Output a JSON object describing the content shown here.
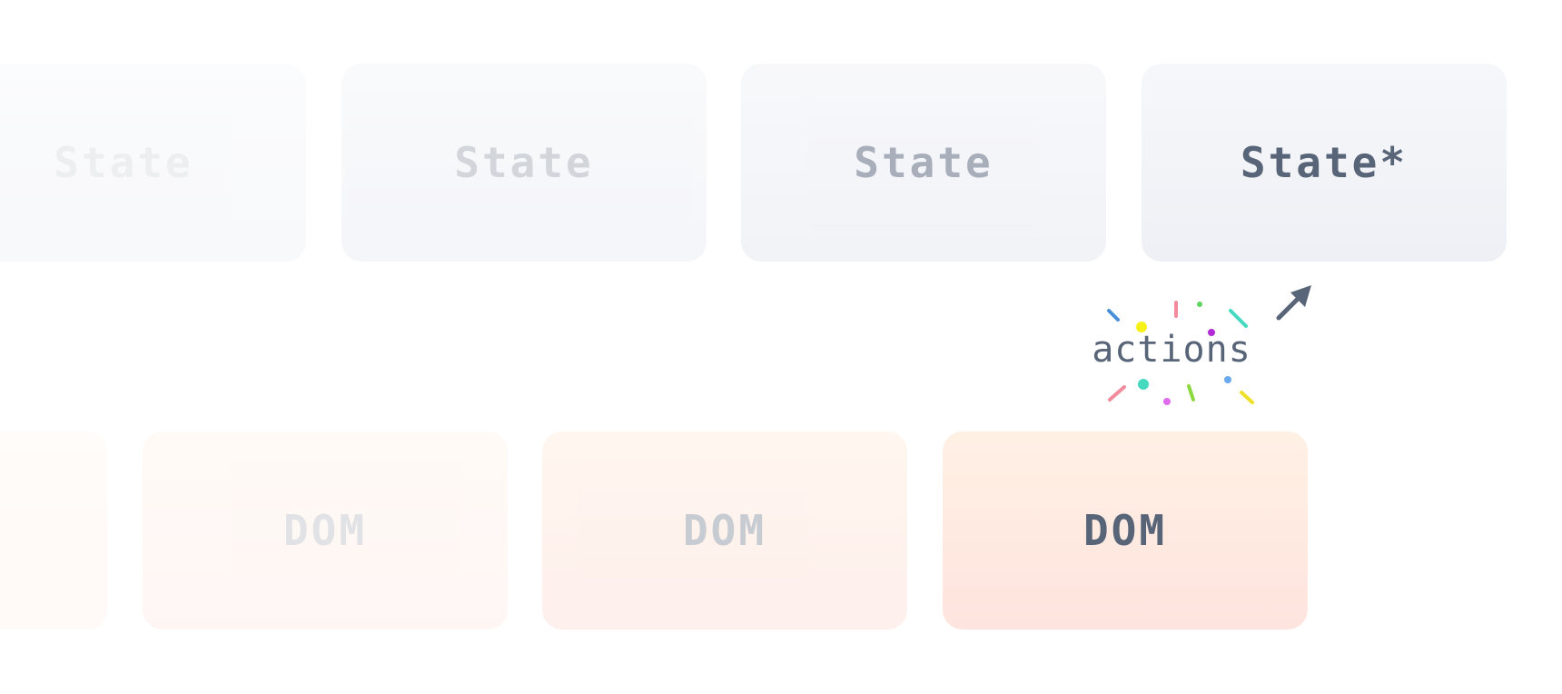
{
  "states": [
    {
      "label": "State"
    },
    {
      "label": "State"
    },
    {
      "label": "State"
    },
    {
      "label": "State*"
    }
  ],
  "doms": [
    {
      "label": "DOM"
    },
    {
      "label": "DOM"
    },
    {
      "label": "DOM"
    }
  ],
  "actions": {
    "label": "actions"
  },
  "colors": {
    "text_dark": "#586477",
    "state_bg": "#eef0f5",
    "dom_bg": "#fee4de",
    "confetti": [
      "#4a90d9",
      "#f7f11a",
      "#f28b9b",
      "#5fd45f",
      "#b12ad6",
      "#45d9c0",
      "#e06bef",
      "#8cd93f",
      "#6aaaf0",
      "#f0e02a"
    ]
  },
  "icons": {
    "arrow": "arrow-up-right-icon"
  }
}
